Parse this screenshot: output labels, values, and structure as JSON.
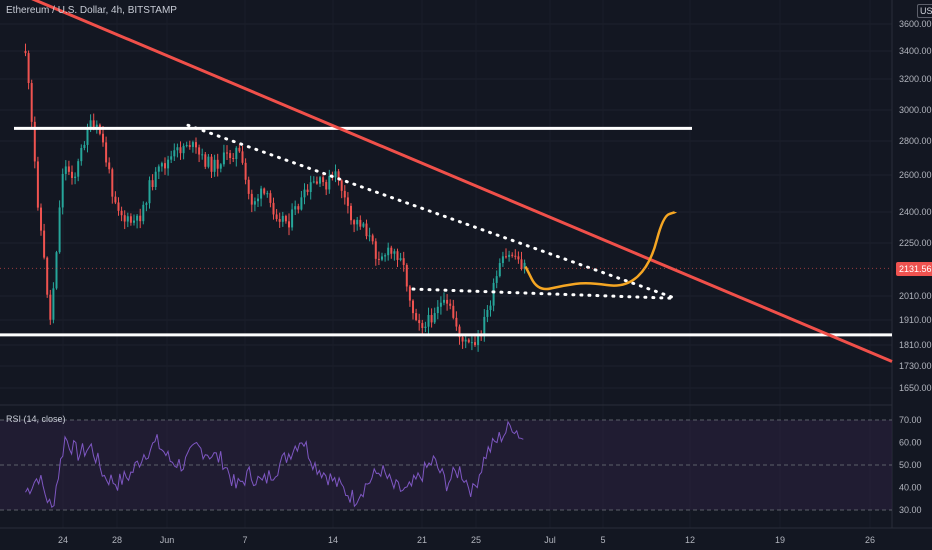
{
  "header": {
    "title": "Ethereum / U.S. Dollar, 4h, BITSTAMP",
    "currency": "USD",
    "last_price": "2131.56"
  },
  "rsi": {
    "label": "RSI (14, close)",
    "levels": [
      "70.00",
      "60.00",
      "50.00",
      "40.00",
      "30.00"
    ]
  },
  "colors": {
    "background": "#131722",
    "candle_up": "#26a69a",
    "candle_down": "#ef5350",
    "trendline": "#f0504a",
    "projection": "#f5a623",
    "rsi_line": "#7e57c2",
    "rsi_band": "#2a1f3d"
  },
  "chart_data": {
    "type": "candlestick",
    "symbol": "ETHUSD",
    "timeframe": "4h",
    "y_axis_ticks": [
      "3600.00",
      "3400.00",
      "3200.00",
      "3000.00",
      "2800.00",
      "2600.00",
      "2400.00",
      "2250.00",
      "2010.00",
      "1910.00",
      "1810.00",
      "1730.00",
      "1650.00"
    ],
    "x_axis_ticks": [
      "24",
      "28",
      "Jun",
      "7",
      "14",
      "21",
      "25",
      "Jul",
      "5",
      "12",
      "19",
      "26"
    ],
    "price_scale": "log",
    "close_path": [
      {
        "date": "May 21",
        "price": 3400
      },
      {
        "date": "May 22",
        "price": 2450
      },
      {
        "date": "May 23",
        "price": 1900
      },
      {
        "date": "May 24",
        "price": 2650
      },
      {
        "date": "May 25",
        "price": 2600
      },
      {
        "date": "May 26",
        "price": 2900
      },
      {
        "date": "May 27",
        "price": 2850
      },
      {
        "date": "May 28",
        "price": 2500
      },
      {
        "date": "May 29",
        "price": 2350
      },
      {
        "date": "May 30",
        "price": 2350
      },
      {
        "date": "May 31",
        "price": 2550
      },
      {
        "date": "Jun 1",
        "price": 2650
      },
      {
        "date": "Jun 3",
        "price": 2800
      },
      {
        "date": "Jun 4",
        "price": 2700
      },
      {
        "date": "Jun 5",
        "price": 2650
      },
      {
        "date": "Jun 6",
        "price": 2700
      },
      {
        "date": "Jun 7",
        "price": 2750
      },
      {
        "date": "Jun 8",
        "price": 2450
      },
      {
        "date": "Jun 9",
        "price": 2500
      },
      {
        "date": "Jun 10",
        "price": 2400
      },
      {
        "date": "Jun 11",
        "price": 2350
      },
      {
        "date": "Jun 12",
        "price": 2450
      },
      {
        "date": "Jun 13",
        "price": 2550
      },
      {
        "date": "Jun 14",
        "price": 2550
      },
      {
        "date": "Jun 15",
        "price": 2600
      },
      {
        "date": "Jun 16",
        "price": 2350
      },
      {
        "date": "Jun 17",
        "price": 2350
      },
      {
        "date": "Jun 18",
        "price": 2200
      },
      {
        "date": "Jun 19",
        "price": 2200
      },
      {
        "date": "Jun 20",
        "price": 2200
      },
      {
        "date": "Jun 21",
        "price": 1950
      },
      {
        "date": "Jun 22",
        "price": 1880
      },
      {
        "date": "Jun 23",
        "price": 1980
      },
      {
        "date": "Jun 24",
        "price": 1950
      },
      {
        "date": "Jun 25",
        "price": 1820
      },
      {
        "date": "Jun 26",
        "price": 1800
      },
      {
        "date": "Jun 27",
        "price": 1950
      },
      {
        "date": "Jun 28",
        "price": 2150
      },
      {
        "date": "Jun 29",
        "price": 2200
      },
      {
        "date": "Jun 30",
        "price": 2131.56
      }
    ],
    "rsi_values": [
      38,
      45,
      30,
      62,
      55,
      58,
      45,
      42,
      46,
      55,
      60,
      52,
      50,
      58,
      55,
      52,
      40,
      46,
      42,
      48,
      55,
      62,
      50,
      45,
      40,
      35,
      42,
      48,
      40,
      38,
      45,
      52,
      42,
      48,
      38,
      55,
      62,
      68,
      60
    ],
    "annotations": {
      "resistance_price": 2880,
      "support_price": 1850,
      "descending_trendline": {
        "start": {
          "date": "May 18",
          "price": 3950
        },
        "end": {
          "date": "Jul 13",
          "price": 2100
        }
      },
      "dotted_upper_trendline": {
        "start": {
          "date": "Jun 3",
          "price": 2900
        },
        "end": {
          "date": "Jul 12",
          "price": 2000
        }
      },
      "dotted_support": {
        "start": {
          "date": "Jun 21",
          "price": 2040
        },
        "end": {
          "date": "Jul 12",
          "price": 2000
        }
      },
      "projection_path": [
        {
          "date": "Jun 30",
          "price": 2140
        },
        {
          "date": "Jul 1",
          "price": 2030
        },
        {
          "date": "Jul 3",
          "price": 2055
        },
        {
          "date": "Jul 5",
          "price": 2070
        },
        {
          "date": "Jul 8",
          "price": 2045
        },
        {
          "date": "Jul 10",
          "price": 2150
        },
        {
          "date": "Jul 11",
          "price": 2380
        },
        {
          "date": "Jul 12",
          "price": 2400
        }
      ]
    }
  }
}
